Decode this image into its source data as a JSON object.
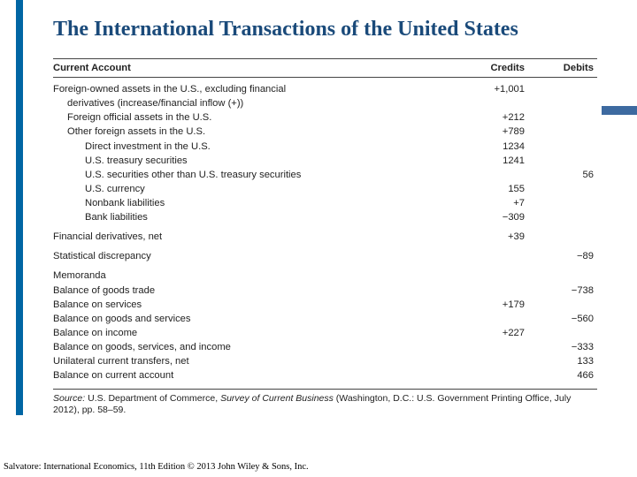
{
  "title": "The International Transactions of the United States",
  "headers": {
    "account": "Current Account",
    "credits": "Credits",
    "debits": "Debits"
  },
  "rows": [
    {
      "label": "Foreign-owned assets in the U.S., excluding financial",
      "indent": 0,
      "cr": "+1,001",
      "db": ""
    },
    {
      "label": "derivatives (increase/financial inflow (+))",
      "indent": 1,
      "cr": "",
      "db": ""
    },
    {
      "label": "Foreign official assets in the U.S.",
      "indent": 1,
      "cr": "+212",
      "db": ""
    },
    {
      "label": "Other foreign assets in the U.S.",
      "indent": 1,
      "cr": "+789",
      "db": ""
    },
    {
      "label": "Direct investment in the U.S.",
      "indent": 2,
      "cr": "1234",
      "db": ""
    },
    {
      "label": "U.S. treasury securities",
      "indent": 2,
      "cr": "1241",
      "db": ""
    },
    {
      "label": "U.S. securities other than U.S. treasury securities",
      "indent": 2,
      "cr": "",
      "db": "56"
    },
    {
      "label": "U.S. currency",
      "indent": 2,
      "cr": "155",
      "db": ""
    },
    {
      "label": "Nonbank liabilities",
      "indent": 2,
      "cr": "+7",
      "db": ""
    },
    {
      "label": "Bank liabilities",
      "indent": 2,
      "cr": "−309",
      "db": ""
    },
    {
      "gap": true
    },
    {
      "label": "Financial derivatives, net",
      "indent": 0,
      "cr": "+39",
      "db": ""
    },
    {
      "gap": true
    },
    {
      "label": "Statistical discrepancy",
      "indent": 0,
      "cr": "",
      "db": "−89"
    },
    {
      "gap": true
    },
    {
      "label": "Memoranda",
      "indent": 0,
      "cr": "",
      "db": ""
    },
    {
      "label": "Balance of goods trade",
      "indent": 0,
      "cr": "",
      "db": "−738"
    },
    {
      "label": "Balance on services",
      "indent": 0,
      "cr": "+179",
      "db": ""
    },
    {
      "label": "Balance on goods and services",
      "indent": 0,
      "cr": "",
      "db": "−560"
    },
    {
      "label": "Balance on income",
      "indent": 0,
      "cr": "+227",
      "db": ""
    },
    {
      "label": "Balance on goods, services, and income",
      "indent": 0,
      "cr": "",
      "db": "−333"
    },
    {
      "label": "Unilateral current transfers, net",
      "indent": 0,
      "cr": "",
      "db": "133"
    },
    {
      "label": "Balance on current account",
      "indent": 0,
      "cr": "",
      "db": "466"
    }
  ],
  "source": {
    "prefix": "Source:",
    "text1": " U.S. Department of Commerce, ",
    "italic": "Survey of Current Business",
    "text2": " (Washington, D.C.: U.S. Government Printing Office, July 2012), pp. 58–59."
  },
  "footer": "Salvatore: International Economics, 11th Edition © 2013 John Wiley & Sons, Inc."
}
